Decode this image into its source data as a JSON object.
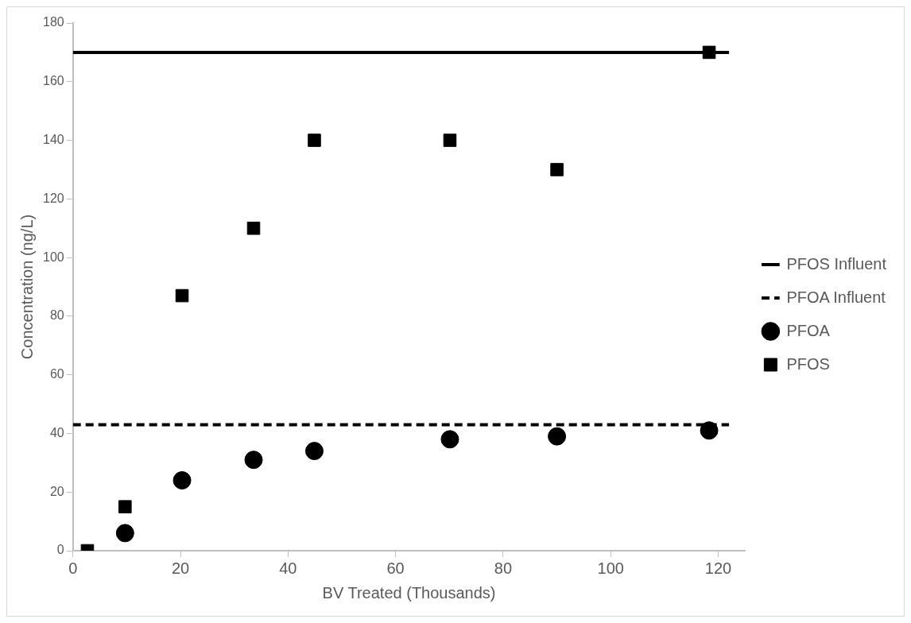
{
  "chart_data": {
    "type": "scatter",
    "xlabel": "BV Treated (Thousands)",
    "ylabel": "Concentration (ng/L)",
    "xlim": [
      0,
      125
    ],
    "xticks": [
      0,
      20,
      40,
      60,
      80,
      100,
      120
    ],
    "ylim": [
      0,
      180
    ],
    "yticks": [
      0,
      20,
      40,
      60,
      80,
      100,
      120,
      140,
      160,
      180
    ],
    "grid": false,
    "legend": "right",
    "series": [
      {
        "name": "PFOS Influent",
        "type": "line",
        "color": "#000000",
        "line_style": "solid",
        "marker": "none",
        "x": [
          0,
          122
        ],
        "values": [
          170,
          170
        ]
      },
      {
        "name": "PFOA Influent",
        "type": "line",
        "color": "#000000",
        "line_style": "dashed",
        "marker": "none",
        "x": [
          0,
          122
        ],
        "values": [
          43,
          43
        ]
      },
      {
        "name": "PFOA",
        "color": "#000000",
        "marker": "circle",
        "x": [
          9.7,
          20.3,
          33.6,
          44.9,
          70.1,
          90,
          118.3
        ],
        "values": [
          6,
          24,
          31,
          34,
          38,
          39,
          41
        ]
      },
      {
        "name": "PFOS",
        "color": "#000000",
        "marker": "square",
        "x": [
          2.7,
          9.7,
          20.3,
          33.6,
          44.9,
          70.1,
          90,
          118.3
        ],
        "values": [
          0,
          15,
          87,
          110,
          140,
          140,
          130,
          170
        ]
      }
    ]
  }
}
